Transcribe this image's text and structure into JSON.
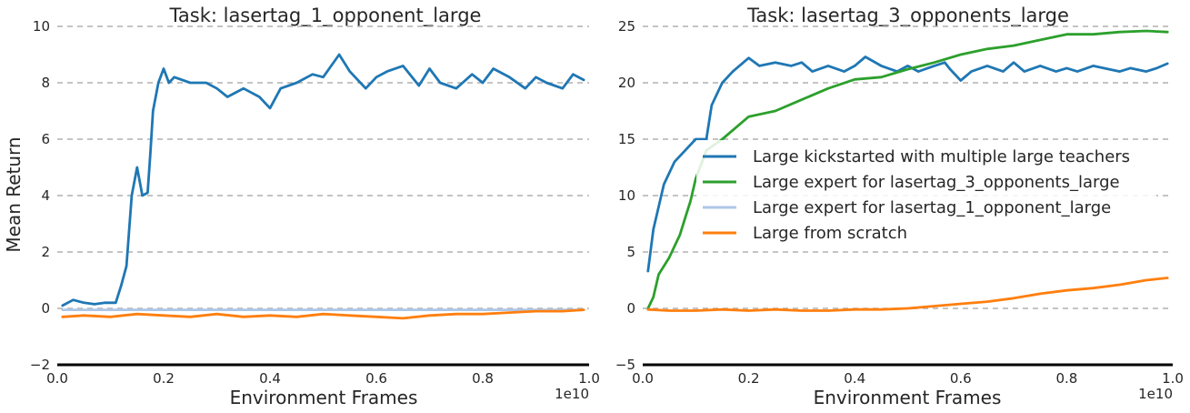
{
  "chart_data": [
    {
      "type": "line",
      "title": "Task: lasertag_1_opponent_large",
      "xlabel": "Environment Frames",
      "ylabel": "Mean Return",
      "x_offset_label": "1e10",
      "xlim": [
        0.0,
        1.0
      ],
      "ylim": [
        -2,
        10
      ],
      "xticks": [
        "0.0",
        "0.2",
        "0.4",
        "0.6",
        "0.8",
        "1.0"
      ],
      "yticks": [
        "−2",
        "0",
        "2",
        "4",
        "6",
        "8",
        "10"
      ],
      "grid": "horizontal dashed",
      "series": [
        {
          "name": "Large kickstarted with multiple large teachers",
          "color": "#1f77b4",
          "x": [
            0.01,
            0.03,
            0.05,
            0.07,
            0.09,
            0.11,
            0.12,
            0.13,
            0.14,
            0.15,
            0.16,
            0.17,
            0.175,
            0.18,
            0.19,
            0.2,
            0.21,
            0.22,
            0.25,
            0.28,
            0.3,
            0.32,
            0.35,
            0.38,
            0.4,
            0.42,
            0.45,
            0.48,
            0.5,
            0.53,
            0.55,
            0.58,
            0.6,
            0.62,
            0.65,
            0.68,
            0.7,
            0.72,
            0.75,
            0.78,
            0.8,
            0.82,
            0.85,
            0.88,
            0.9,
            0.92,
            0.95,
            0.97,
            0.99
          ],
          "y": [
            0.1,
            0.3,
            0.2,
            0.15,
            0.2,
            0.2,
            0.8,
            1.5,
            4.0,
            5.0,
            4.0,
            4.1,
            5.5,
            7.0,
            8.0,
            8.5,
            8.0,
            8.2,
            8.0,
            8.0,
            7.8,
            7.5,
            7.8,
            7.5,
            7.1,
            7.8,
            8.0,
            8.3,
            8.2,
            9.0,
            8.4,
            7.8,
            8.2,
            8.4,
            8.6,
            7.9,
            8.5,
            8.0,
            7.8,
            8.3,
            8.0,
            8.5,
            8.2,
            7.8,
            8.2,
            8.0,
            7.8,
            8.3,
            8.1
          ]
        },
        {
          "name": "Large expert for lasertag_1_opponent_large",
          "color": "#aec7e8",
          "x": [
            0.01,
            0.05,
            0.1,
            0.2,
            0.3,
            0.4,
            0.5,
            0.6,
            0.7,
            0.8,
            0.9,
            0.99
          ],
          "y": [
            -0.05,
            -0.05,
            -0.05,
            -0.05,
            -0.05,
            -0.05,
            -0.05,
            -0.05,
            -0.05,
            -0.05,
            -0.05,
            -0.05
          ]
        },
        {
          "name": "Large from scratch",
          "color": "#ff7f0e",
          "x": [
            0.01,
            0.05,
            0.1,
            0.15,
            0.2,
            0.25,
            0.3,
            0.35,
            0.4,
            0.45,
            0.5,
            0.55,
            0.6,
            0.65,
            0.7,
            0.75,
            0.8,
            0.85,
            0.9,
            0.95,
            0.99
          ],
          "y": [
            -0.3,
            -0.25,
            -0.3,
            -0.2,
            -0.25,
            -0.3,
            -0.2,
            -0.3,
            -0.25,
            -0.3,
            -0.2,
            -0.25,
            -0.3,
            -0.35,
            -0.25,
            -0.2,
            -0.2,
            -0.15,
            -0.1,
            -0.1,
            -0.05
          ]
        }
      ]
    },
    {
      "type": "line",
      "title": "Task: lasertag_3_opponents_large",
      "xlabel": "Environment Frames",
      "ylabel": "",
      "x_offset_label": "1e10",
      "xlim": [
        0.0,
        1.0
      ],
      "ylim": [
        -5,
        25
      ],
      "xticks": [
        "0.0",
        "0.2",
        "0.4",
        "0.6",
        "0.8",
        "1.0"
      ],
      "yticks": [
        "−5",
        "0",
        "5",
        "10",
        "15",
        "20",
        "25"
      ],
      "grid": "horizontal dashed",
      "legend_position": "center-right",
      "series": [
        {
          "name": "Large kickstarted with multiple large teachers",
          "color": "#1f77b4",
          "x": [
            0.01,
            0.02,
            0.04,
            0.06,
            0.08,
            0.1,
            0.12,
            0.13,
            0.14,
            0.15,
            0.17,
            0.2,
            0.22,
            0.25,
            0.28,
            0.3,
            0.32,
            0.35,
            0.38,
            0.4,
            0.42,
            0.45,
            0.48,
            0.5,
            0.52,
            0.55,
            0.57,
            0.58,
            0.6,
            0.62,
            0.65,
            0.68,
            0.7,
            0.72,
            0.75,
            0.78,
            0.8,
            0.82,
            0.85,
            0.88,
            0.9,
            0.92,
            0.95,
            0.97,
            0.99
          ],
          "y": [
            3.3,
            7.0,
            11.0,
            13.0,
            14.0,
            15.0,
            15.0,
            18.0,
            19.0,
            20.0,
            21.0,
            22.2,
            21.5,
            21.8,
            21.5,
            21.8,
            21.0,
            21.5,
            21.0,
            21.5,
            22.3,
            21.5,
            21.0,
            21.5,
            21.0,
            21.5,
            21.8,
            21.2,
            20.2,
            21.0,
            21.5,
            21.0,
            21.8,
            21.0,
            21.5,
            21.0,
            21.3,
            21.0,
            21.5,
            21.2,
            21.0,
            21.3,
            21.0,
            21.3,
            21.7
          ]
        },
        {
          "name": "Large expert for lasertag_3_opponents_large",
          "color": "#2ca02c",
          "x": [
            0.01,
            0.02,
            0.03,
            0.05,
            0.07,
            0.08,
            0.09,
            0.1,
            0.12,
            0.15,
            0.2,
            0.25,
            0.3,
            0.35,
            0.4,
            0.45,
            0.5,
            0.55,
            0.6,
            0.65,
            0.7,
            0.75,
            0.8,
            0.85,
            0.9,
            0.95,
            0.99
          ],
          "y": [
            0.0,
            1.0,
            3.0,
            4.5,
            6.5,
            8.0,
            9.5,
            11.5,
            14.0,
            15.0,
            17.0,
            17.5,
            18.5,
            19.5,
            20.3,
            20.5,
            21.2,
            21.8,
            22.5,
            23.0,
            23.3,
            23.8,
            24.3,
            24.3,
            24.5,
            24.6,
            24.5
          ]
        },
        {
          "name": "Large expert for lasertag_1_opponent_large",
          "color": "#aec7e8",
          "x": [],
          "y": []
        },
        {
          "name": "Large from scratch",
          "color": "#ff7f0e",
          "x": [
            0.01,
            0.05,
            0.1,
            0.15,
            0.2,
            0.25,
            0.3,
            0.35,
            0.4,
            0.45,
            0.5,
            0.55,
            0.6,
            0.65,
            0.7,
            0.75,
            0.8,
            0.85,
            0.9,
            0.95,
            0.99
          ],
          "y": [
            -0.1,
            -0.2,
            -0.2,
            -0.1,
            -0.2,
            -0.1,
            -0.2,
            -0.2,
            -0.1,
            -0.1,
            0.0,
            0.2,
            0.4,
            0.6,
            0.9,
            1.3,
            1.6,
            1.8,
            2.1,
            2.5,
            2.7
          ]
        }
      ]
    }
  ]
}
